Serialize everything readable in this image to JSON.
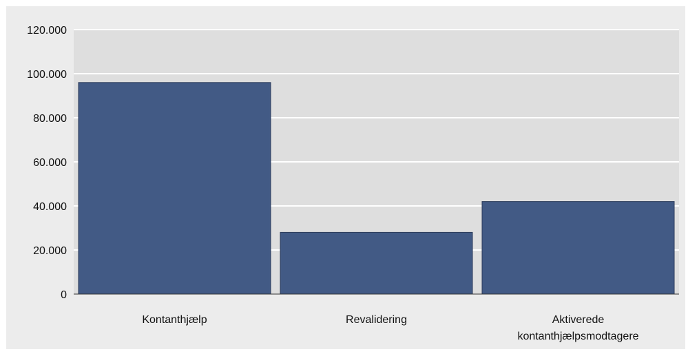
{
  "chart_data": {
    "type": "bar",
    "categories": [
      "Kontanthjælp",
      "Revalidering",
      "Aktiverede kontanthjælpsmodtagere"
    ],
    "category_label_lines": [
      [
        "Kontanthjælp"
      ],
      [
        "Revalidering"
      ],
      [
        "Aktiverede",
        "kontanthjælpsmodtagere"
      ]
    ],
    "values": [
      96000,
      28000,
      42000
    ],
    "ylim": [
      0,
      120000
    ],
    "yticks": [
      0,
      20000,
      40000,
      60000,
      80000,
      100000,
      120000
    ],
    "ytick_labels": [
      "0",
      "20.000",
      "40.000",
      "60.000",
      "80.000",
      "100.000",
      "120.000"
    ],
    "title": "",
    "xlabel": "",
    "ylabel": "",
    "grid": true,
    "legend": "none",
    "colors": {
      "bar": "#425a85",
      "bar_edge": "#2b3b5a",
      "plot_background": "#dedede",
      "outer_background": "#ececec",
      "gridline": "#ffffff",
      "axis": "#333333"
    }
  }
}
